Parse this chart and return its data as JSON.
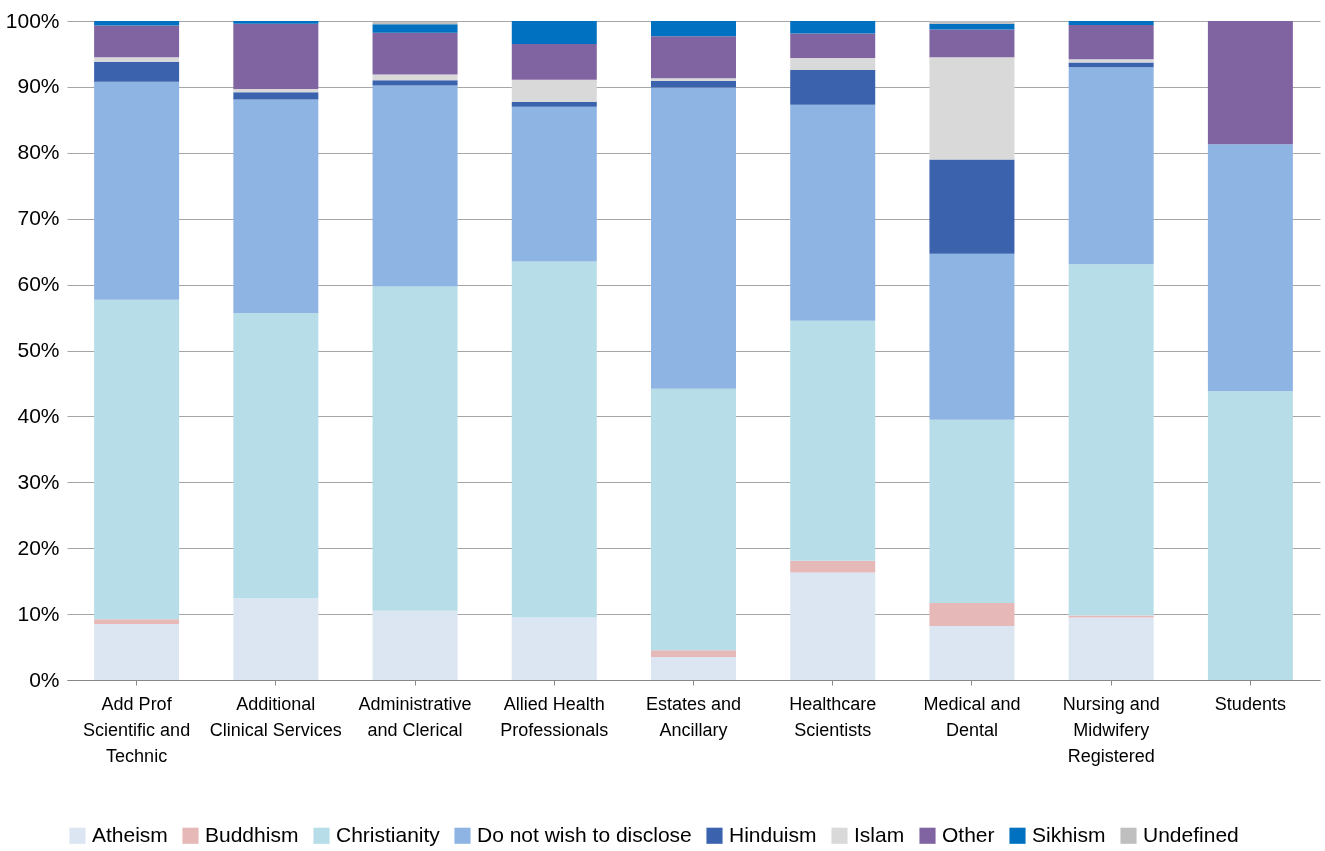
{
  "chart_data": {
    "type": "bar",
    "stacked": true,
    "categories": [
      "Add Prof\nScientific and\nTechnic",
      "Additional\nClinical Services",
      "Administrative\nand Clerical",
      "Allied Health\nProfessionals",
      "Estates and\nAncillary",
      "Healthcare\nScientists",
      "Medical and\nDental",
      "Nursing and\nMidwifery\nRegistered",
      "Students"
    ],
    "series": [
      {
        "name": "Atheism",
        "color": "#dce6f2",
        "values": [
          8.5,
          12.4,
          10.5,
          9.5,
          3.5,
          16.3,
          8.2,
          9.5,
          0
        ]
      },
      {
        "name": "Buddhism",
        "color": "#e6b9b8",
        "values": [
          0.7,
          0,
          0,
          0,
          1.0,
          1.8,
          3.5,
          0.3,
          0
        ]
      },
      {
        "name": "Christianity",
        "color": "#b7dee8",
        "values": [
          48.5,
          43.3,
          49.2,
          54.0,
          39.7,
          36.4,
          27.8,
          53.3,
          43.8
        ]
      },
      {
        "name": "Do not wish to disclose",
        "color": "#8eb4e3",
        "values": [
          33.1,
          32.4,
          30.5,
          23.5,
          45.7,
          32.8,
          25.2,
          29.9,
          37.5
        ]
      },
      {
        "name": "Hinduism",
        "color": "#3a62ad",
        "values": [
          3.0,
          1.1,
          0.8,
          0.7,
          1.0,
          5.3,
          14.3,
          0.7,
          0
        ]
      },
      {
        "name": "Islam",
        "color": "#d9d9d9",
        "values": [
          0.7,
          0.5,
          0.9,
          3.4,
          0.4,
          1.8,
          15.5,
          0.5,
          0
        ]
      },
      {
        "name": "Other",
        "color": "#8064a2",
        "values": [
          4.8,
          9.9,
          6.3,
          5.4,
          6.4,
          3.7,
          4.2,
          5.2,
          18.7
        ]
      },
      {
        "name": "Sikhism",
        "color": "#0070c0",
        "values": [
          0.7,
          0.4,
          1.3,
          3.5,
          2.3,
          1.9,
          0.9,
          0.6,
          0
        ]
      },
      {
        "name": "Undefined",
        "color": "#bfbfbf",
        "values": [
          0,
          0,
          0.4,
          0,
          0,
          0,
          0.4,
          0,
          0
        ]
      }
    ],
    "ylim": [
      0,
      100
    ],
    "yticks": [
      {
        "value": 0,
        "label": "0%"
      },
      {
        "value": 10,
        "label": "10%"
      },
      {
        "value": 20,
        "label": "20%"
      },
      {
        "value": 30,
        "label": "30%"
      },
      {
        "value": 40,
        "label": "40%"
      },
      {
        "value": 50,
        "label": "50%"
      },
      {
        "value": 60,
        "label": "60%"
      },
      {
        "value": 70,
        "label": "70%"
      },
      {
        "value": 80,
        "label": "80%"
      },
      {
        "value": 90,
        "label": "90%"
      },
      {
        "value": 100,
        "label": "100%"
      }
    ],
    "grid": "y",
    "legend": "bottom"
  }
}
